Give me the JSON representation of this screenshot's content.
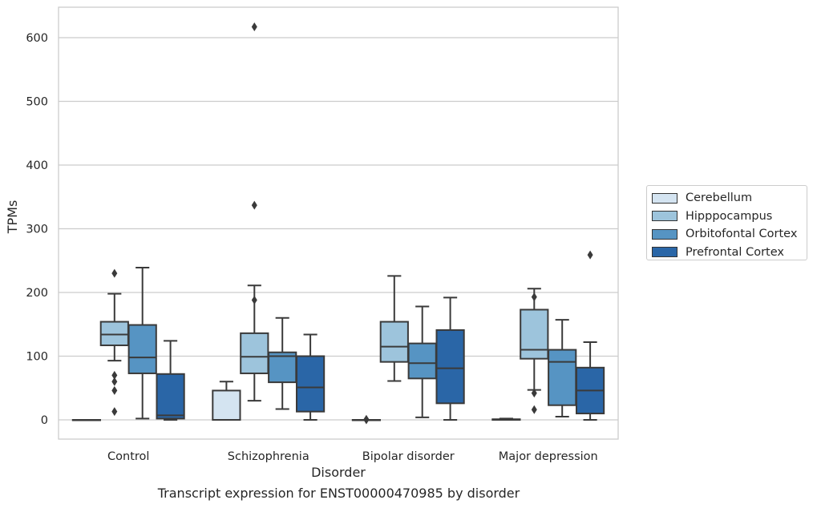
{
  "chart_data": {
    "type": "box",
    "xlabel": "Disorder",
    "ylabel": "TPMs",
    "caption": "Transcript expression for ENST00000470985 by disorder",
    "ylim": [
      -30,
      650
    ],
    "yticks": [
      0,
      100,
      200,
      300,
      400,
      500,
      600
    ],
    "grid": "horizontal",
    "legend_placement": "right",
    "categories": [
      "Control",
      "Schizophrenia",
      "Bipolar disorder",
      "Major depression"
    ],
    "series": [
      {
        "name": "Cerebellum",
        "color": "#d4e4f1",
        "boxes": [
          {
            "min": 0,
            "q1": 0,
            "median": 0,
            "q3": 0,
            "max": 0,
            "outliers": []
          },
          {
            "min": 0,
            "q1": 0,
            "median": 0,
            "q3": 46,
            "max": 60,
            "outliers": []
          },
          {
            "min": 0,
            "q1": 0,
            "median": 0,
            "q3": 0,
            "max": 0,
            "outliers": [
              1,
              0
            ]
          },
          {
            "min": 0,
            "q1": 0,
            "median": 0,
            "q3": 1,
            "max": 2,
            "outliers": []
          }
        ]
      },
      {
        "name": "Hipppocampus",
        "color": "#9dc4dc",
        "boxes": [
          {
            "min": 93,
            "q1": 117,
            "median": 134,
            "q3": 154,
            "max": 198,
            "outliers": [
              230,
              70,
              60,
              46,
              13
            ]
          },
          {
            "min": 30,
            "q1": 73,
            "median": 99,
            "q3": 136,
            "max": 211,
            "outliers": [
              617,
              337,
              188
            ]
          },
          {
            "min": 61,
            "q1": 91,
            "median": 115,
            "q3": 154,
            "max": 226,
            "outliers": []
          },
          {
            "min": 47,
            "q1": 96,
            "median": 110,
            "q3": 173,
            "max": 206,
            "outliers": [
              193,
              42,
              16
            ]
          }
        ]
      },
      {
        "name": "Orbitofontal Cortex",
        "color": "#5694c3",
        "boxes": [
          {
            "min": 2,
            "q1": 73,
            "median": 98,
            "q3": 149,
            "max": 239,
            "outliers": []
          },
          {
            "min": 17,
            "q1": 59,
            "median": 100,
            "q3": 106,
            "max": 160,
            "outliers": []
          },
          {
            "min": 4,
            "q1": 65,
            "median": 89,
            "q3": 120,
            "max": 178,
            "outliers": []
          },
          {
            "min": 5,
            "q1": 23,
            "median": 91,
            "q3": 110,
            "max": 157,
            "outliers": []
          }
        ]
      },
      {
        "name": "Prefrontal Cortex",
        "color": "#2a66a7",
        "boxes": [
          {
            "min": 0,
            "q1": 2,
            "median": 7,
            "q3": 72,
            "max": 124,
            "outliers": []
          },
          {
            "min": 0,
            "q1": 13,
            "median": 51,
            "q3": 100,
            "max": 134,
            "outliers": []
          },
          {
            "min": 0,
            "q1": 26,
            "median": 81,
            "q3": 141,
            "max": 192,
            "outliers": []
          },
          {
            "min": 0,
            "q1": 10,
            "median": 46,
            "q3": 82,
            "max": 122,
            "outliers": [
              259
            ]
          }
        ]
      }
    ]
  }
}
